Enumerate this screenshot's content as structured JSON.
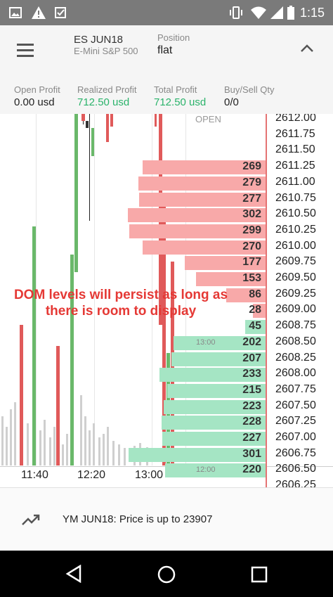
{
  "status_bar": {
    "time": "1:15",
    "left_icons": [
      "image-icon",
      "warning-icon",
      "reminder-icon"
    ],
    "right_icons": [
      "vibrate-icon",
      "wifi-icon",
      "signal-icon",
      "battery-icon"
    ]
  },
  "header": {
    "symbol": "ES JUN18",
    "symbol_desc": "E-Mini S&P 500",
    "position_label": "Position",
    "position_value": "flat",
    "stats": [
      {
        "label": "Open Profit",
        "value": "0.00 usd"
      },
      {
        "label": "Realized Profit",
        "value": "712.50 usd"
      },
      {
        "label": "Total Profit",
        "value": "712.50 usd"
      },
      {
        "label": "Buy/Sell Qty",
        "value": "0/0"
      }
    ]
  },
  "dom": {
    "open_label": "OPEN",
    "rows": [
      {
        "price": "2612.00",
        "qty": ""
      },
      {
        "price": "2611.75",
        "qty": ""
      },
      {
        "price": "2611.50",
        "qty": ""
      },
      {
        "price": "2611.25",
        "qty": "269",
        "side": "ask"
      },
      {
        "price": "2611.00",
        "qty": "279",
        "side": "ask"
      },
      {
        "price": "2610.75",
        "qty": "277",
        "side": "ask"
      },
      {
        "price": "2610.50",
        "qty": "302",
        "side": "ask"
      },
      {
        "price": "2610.25",
        "qty": "299",
        "side": "ask"
      },
      {
        "price": "2610.00",
        "qty": "270",
        "side": "ask"
      },
      {
        "price": "2609.75",
        "qty": "177",
        "side": "ask"
      },
      {
        "price": "2609.50",
        "qty": "153",
        "side": "ask"
      },
      {
        "price": "2609.25",
        "qty": "86",
        "side": "ask"
      },
      {
        "price": "2609.00",
        "qty": "28",
        "side": "ask"
      },
      {
        "price": "2608.75",
        "qty": "45",
        "side": "bid"
      },
      {
        "price": "2608.50",
        "qty": "202",
        "side": "bid",
        "time": "13:00"
      },
      {
        "price": "2608.25",
        "qty": "207",
        "side": "bid"
      },
      {
        "price": "2608.00",
        "qty": "233",
        "side": "bid"
      },
      {
        "price": "2607.75",
        "qty": "215",
        "side": "bid"
      },
      {
        "price": "2607.50",
        "qty": "223",
        "side": "bid"
      },
      {
        "price": "2607.25",
        "qty": "228",
        "side": "bid"
      },
      {
        "price": "2607.00",
        "qty": "227",
        "side": "bid"
      },
      {
        "price": "2606.75",
        "qty": "301",
        "side": "bid"
      },
      {
        "price": "2606.50",
        "qty": "220",
        "side": "bid",
        "time": "12:00"
      },
      {
        "price": "2606.25",
        "qty": ""
      }
    ],
    "annotation": "DOM levels will persist as long as there is room to display"
  },
  "x_axis": [
    "11:40",
    "12:20",
    "13:00"
  ],
  "notification": {
    "icon": "trending-up-icon",
    "text": "YM JUN18: Price is up to 23907"
  },
  "nav": {
    "icons": [
      "back-icon",
      "home-icon",
      "recents-icon"
    ]
  },
  "colors": {
    "ask": "#f8a9a9",
    "bid": "#a5e5c4",
    "buy_candle": "#6ab86a",
    "sell_candle": "#e05a5a",
    "profit": "#2bb36b"
  }
}
